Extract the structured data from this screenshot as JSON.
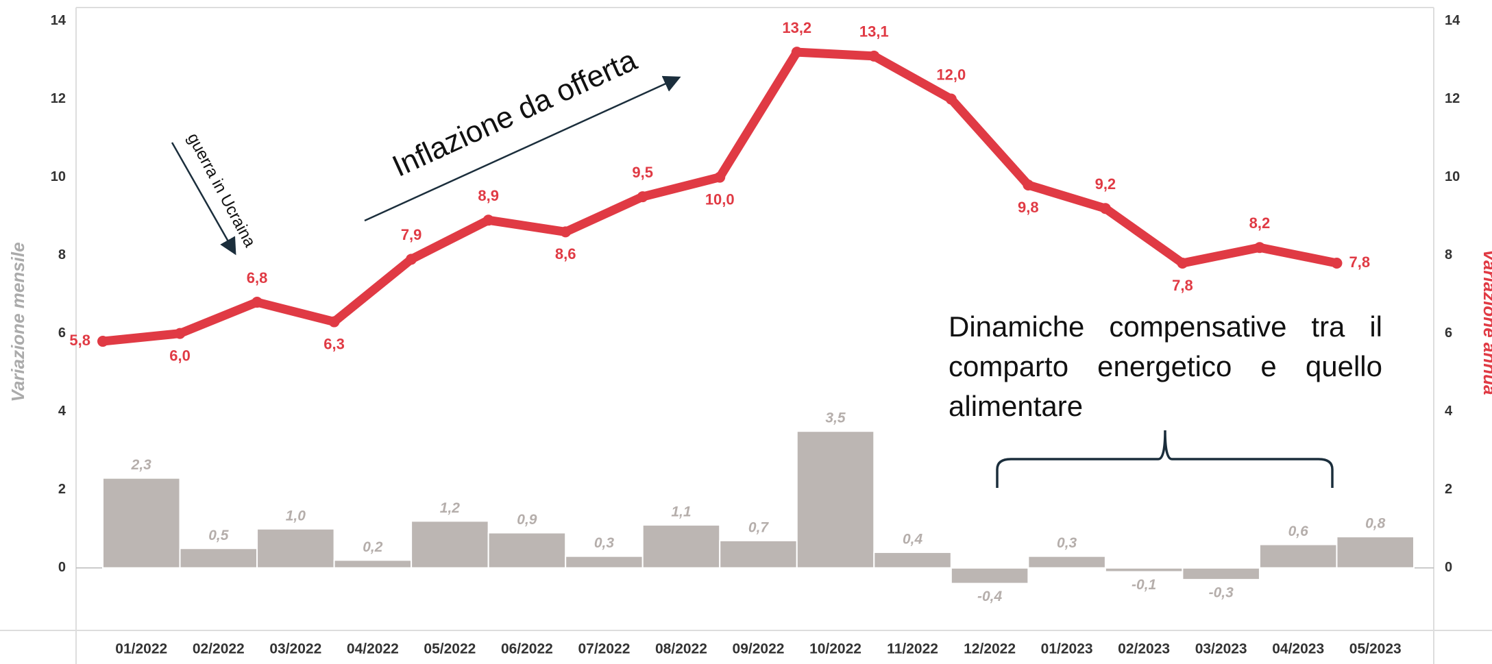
{
  "chart_data": {
    "type": "bar+line",
    "categories": [
      "01/2022",
      "02/2022",
      "03/2022",
      "04/2022",
      "05/2022",
      "06/2022",
      "07/2022",
      "08/2022",
      "09/2022",
      "10/2022",
      "11/2022",
      "12/2022",
      "01/2023",
      "02/2023",
      "03/2023",
      "04/2023",
      "05/2023"
    ],
    "series": [
      {
        "name": "Variazione mensile",
        "type": "bar",
        "color": "#bcb6b3",
        "axis": "y",
        "values": [
          2.3,
          0.5,
          1.0,
          0.2,
          1.2,
          0.9,
          0.3,
          1.1,
          0.7,
          3.5,
          0.4,
          -0.4,
          0.3,
          -0.1,
          -0.3,
          0.6,
          0.8
        ],
        "value_labels": [
          "2,3",
          "0,5",
          "1,0",
          "0,2",
          "1,2",
          "0,9",
          "0,3",
          "1,1",
          "0,7",
          "3,5",
          "0,4",
          "-0,4",
          "0,3",
          "-0,1",
          "-0,3",
          "0,6",
          "0,8"
        ]
      },
      {
        "name": "Variazione annua",
        "type": "line",
        "color": "#e03a44",
        "axis": "y2",
        "values": [
          5.8,
          6.0,
          6.8,
          6.3,
          7.9,
          8.9,
          8.6,
          9.5,
          10.0,
          13.2,
          13.1,
          12.0,
          9.8,
          9.2,
          7.8,
          8.2,
          7.8
        ],
        "value_labels": [
          "5,8",
          "6,0",
          "6,8",
          "6,3",
          "7,9",
          "8,9",
          "8,6",
          "9,5",
          "10,0",
          "13,2",
          "13,1",
          "12,0",
          "9,8",
          "9,2",
          "7,8",
          "8,2",
          "7,8"
        ]
      }
    ],
    "ylabel": "Variazione mensile",
    "y2label": "Variazione annua",
    "ylim": [
      -1.6,
      14
    ],
    "yticks": [
      0,
      2,
      4,
      6,
      8,
      10,
      12,
      14
    ],
    "y2lim": [
      -1.6,
      14
    ],
    "y2ticks": [
      0,
      2,
      4,
      6,
      8,
      10,
      12,
      14
    ],
    "annotations": [
      "Inflazione da offerta",
      "guerra in Ucraina",
      "Dinamiche compensative tra il comparto energetico e  quello alimentare"
    ]
  }
}
